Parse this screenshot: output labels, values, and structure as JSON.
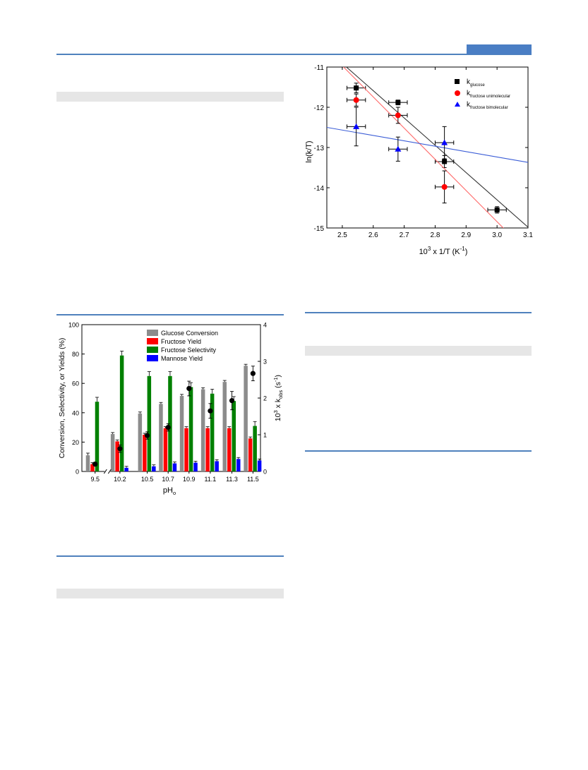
{
  "page": {
    "accent_color": "#4a7ec4",
    "rule_color": "#4f81bd",
    "band_color": "#e6e6e6"
  },
  "chart_data": [
    {
      "type": "bar",
      "xlabel": "pH",
      "xlabel_sub": "o",
      "ylabel_left": "Conversion, Selectivity, or Yields (%)",
      "ylabel_right_prefix": "10",
      "ylabel_right_sup": "3",
      "ylabel_right_mid": " x k",
      "ylabel_right_sub": "obs",
      "ylabel_right_suffix": " (s",
      "ylabel_right_sup2": "-1",
      "ylabel_right_end": ")",
      "ylim_left": [
        0,
        100
      ],
      "ylim_right": [
        0,
        4
      ],
      "yticks_left": [
        "0",
        "20",
        "40",
        "60",
        "80",
        "100"
      ],
      "yticks_right": [
        "0",
        "1",
        "2",
        "3",
        "4"
      ],
      "axis_break_between": [
        "9.5",
        "10.2"
      ],
      "legend_position": "top-right",
      "categories": [
        "9.5",
        "10.2",
        "10.5",
        "10.7",
        "10.9",
        "11.1",
        "11.3",
        "11.5"
      ],
      "series": [
        {
          "name": "Glucose Conversion",
          "color": "#8c8c8c",
          "values": [
            11,
            25.5,
            39.5,
            46,
            51.5,
            56,
            61,
            72
          ],
          "errors": [
            1.5,
            1,
            1,
            1,
            1,
            1,
            1,
            1
          ]
        },
        {
          "name": "Fructose Yield",
          "color": "#ff0000",
          "values": [
            5,
            20.5,
            25,
            29.5,
            29.5,
            29.5,
            29.5,
            22.5
          ],
          "errors": [
            1,
            1,
            1,
            1,
            1,
            1,
            1,
            1
          ]
        },
        {
          "name": "Fructose Selectivity",
          "color": "#008000",
          "values": [
            47.5,
            79,
            65,
            65,
            57.5,
            53,
            48,
            31
          ],
          "errors": [
            3,
            3,
            3,
            3,
            3,
            3,
            3,
            3
          ]
        },
        {
          "name": "Mannose Yield",
          "color": "#0000ff",
          "values": [
            0,
            2.5,
            3.5,
            5.5,
            6,
            7,
            8.5,
            7.5
          ],
          "errors": [
            0,
            1,
            1,
            1,
            1,
            1,
            1,
            1
          ]
        }
      ],
      "kobs_points": {
        "marker": "circle",
        "color": "#000000",
        "values": [
          0.2,
          0.62,
          0.98,
          1.2,
          2.26,
          1.65,
          1.93,
          2.67
        ],
        "errors": [
          0.05,
          0.1,
          0.1,
          0.1,
          0.2,
          0.2,
          0.25,
          0.2
        ]
      }
    },
    {
      "type": "scatter",
      "xlabel_prefix": "10",
      "xlabel_sup": "3",
      "xlabel_mid": " x 1/T (K",
      "xlabel_sup2": "-1",
      "xlabel_end": ")",
      "ylabel": "ln(k/T)",
      "xlim": [
        2.45,
        3.1
      ],
      "ylim": [
        -15,
        -11
      ],
      "xticks": [
        "2.5",
        "2.6",
        "2.7",
        "2.8",
        "2.9",
        "3.0",
        "3.1"
      ],
      "yticks": [
        "-11",
        "-12",
        "-13",
        "-14",
        "-15"
      ],
      "legend_position": "top-right",
      "series": [
        {
          "name_main": "k",
          "name_sub": "glucose",
          "marker": "square",
          "color": "#000000",
          "x": [
            2.545,
            2.68,
            2.83,
            3.0
          ],
          "y": [
            -11.52,
            -11.88,
            -13.35,
            -14.55
          ],
          "xerr": [
            0.03,
            0.03,
            0.03,
            0.03
          ],
          "yerr": [
            0.12,
            0.06,
            0.15,
            0.08
          ],
          "fit_color": "#333333",
          "fit": {
            "x": [
              2.45,
              3.1
            ],
            "y": [
              -10.57,
              -14.98
            ]
          }
        },
        {
          "name_main": "k",
          "name_sub": "fructose unimolecular",
          "marker": "circle",
          "color": "#ff0000",
          "x": [
            2.545,
            2.68,
            2.83
          ],
          "y": [
            -11.82,
            -12.2,
            -13.98
          ],
          "xerr": [
            0.03,
            0.03,
            0.03
          ],
          "yerr": [
            0.15,
            0.2,
            0.4
          ],
          "fit_color": "#ff6b6b",
          "fit": {
            "x": [
              2.45,
              3.1
            ],
            "y": [
              -10.58,
              -15.62
            ]
          }
        },
        {
          "name_main": "k",
          "name_sub": "fructose bimolecular",
          "marker": "triangle",
          "color": "#0000ff",
          "x": [
            2.545,
            2.68,
            2.83
          ],
          "y": [
            -12.48,
            -13.04,
            -12.88
          ],
          "xerr": [
            0.03,
            0.03,
            0.03
          ],
          "yerr": [
            0.48,
            0.3,
            0.4
          ],
          "fit_color": "#3a5cd6",
          "fit": {
            "x": [
              2.45,
              3.1
            ],
            "y": [
              -12.5,
              -13.37
            ]
          }
        }
      ]
    }
  ]
}
